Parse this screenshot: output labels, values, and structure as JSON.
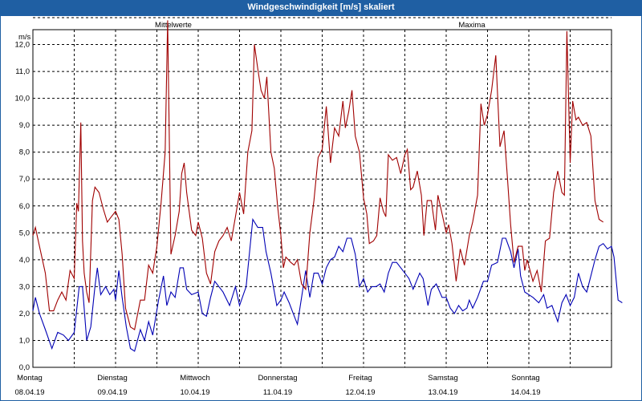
{
  "window": {
    "title": "Windgeschwindigkeit [m/s] skaliert"
  },
  "chart_data": {
    "type": "line",
    "title": "Windgeschwindigkeit [m/s] skaliert",
    "ylabel": "m/s",
    "ylim": [
      0,
      13
    ],
    "grid": true,
    "legend": "top",
    "y_ticks": [
      "0,0",
      "1,0",
      "2,0",
      "3,0",
      "4,0",
      "5,0",
      "6,0",
      "7,0",
      "8,0",
      "9,0",
      "10,0",
      "11,0",
      "12,0"
    ],
    "x_ticks": [
      {
        "day": "Montag",
        "date": "08.04.19"
      },
      {
        "day": "Dienstag",
        "date": "09.04.19"
      },
      {
        "day": "Mittwoch",
        "date": "10.04.19"
      },
      {
        "day": "Donnerstag",
        "date": "11.04.19"
      },
      {
        "day": "Freitag",
        "date": "12.04.19"
      },
      {
        "day": "Samstag",
        "date": "13.04.19"
      },
      {
        "day": "Sonntag",
        "date": "14.04.19"
      }
    ],
    "x_unit": "days since 08.04.19 00:00",
    "series": [
      {
        "name": "Mittelwerte",
        "color": "#0000b4",
        "points": [
          [
            0.0,
            2.1
          ],
          [
            0.03,
            2.6
          ],
          [
            0.08,
            2.0
          ],
          [
            0.15,
            1.4
          ],
          [
            0.23,
            0.7
          ],
          [
            0.3,
            1.3
          ],
          [
            0.37,
            1.2
          ],
          [
            0.43,
            1.0
          ],
          [
            0.5,
            1.3
          ],
          [
            0.56,
            3.0
          ],
          [
            0.6,
            3.0
          ],
          [
            0.65,
            1.0
          ],
          [
            0.7,
            1.5
          ],
          [
            0.75,
            3.0
          ],
          [
            0.78,
            3.7
          ],
          [
            0.82,
            2.7
          ],
          [
            0.88,
            3.0
          ],
          [
            0.93,
            2.7
          ],
          [
            0.98,
            2.9
          ],
          [
            1.0,
            2.5
          ],
          [
            1.04,
            3.6
          ],
          [
            1.08,
            2.6
          ],
          [
            1.13,
            1.5
          ],
          [
            1.18,
            0.7
          ],
          [
            1.23,
            0.6
          ],
          [
            1.3,
            1.4
          ],
          [
            1.35,
            1.0
          ],
          [
            1.4,
            1.7
          ],
          [
            1.45,
            1.2
          ],
          [
            1.52,
            2.5
          ],
          [
            1.58,
            3.4
          ],
          [
            1.62,
            2.3
          ],
          [
            1.67,
            2.8
          ],
          [
            1.72,
            2.6
          ],
          [
            1.78,
            3.7
          ],
          [
            1.82,
            3.7
          ],
          [
            1.86,
            2.9
          ],
          [
            1.92,
            2.7
          ],
          [
            2.0,
            2.8
          ],
          [
            2.05,
            2.0
          ],
          [
            2.1,
            1.9
          ],
          [
            2.15,
            2.6
          ],
          [
            2.2,
            3.2
          ],
          [
            2.25,
            3.0
          ],
          [
            2.3,
            2.8
          ],
          [
            2.38,
            2.3
          ],
          [
            2.45,
            3.0
          ],
          [
            2.5,
            2.3
          ],
          [
            2.58,
            3.0
          ],
          [
            2.66,
            5.5
          ],
          [
            2.72,
            5.2
          ],
          [
            2.78,
            5.2
          ],
          [
            2.82,
            4.3
          ],
          [
            2.88,
            3.5
          ],
          [
            2.95,
            2.3
          ],
          [
            3.0,
            2.5
          ],
          [
            3.04,
            2.8
          ],
          [
            3.1,
            2.4
          ],
          [
            3.15,
            2.0
          ],
          [
            3.2,
            1.6
          ],
          [
            3.25,
            2.6
          ],
          [
            3.3,
            3.6
          ],
          [
            3.35,
            2.6
          ],
          [
            3.4,
            3.5
          ],
          [
            3.45,
            3.5
          ],
          [
            3.5,
            3.1
          ],
          [
            3.55,
            3.7
          ],
          [
            3.6,
            4.0
          ],
          [
            3.65,
            4.1
          ],
          [
            3.7,
            4.5
          ],
          [
            3.75,
            4.3
          ],
          [
            3.8,
            4.8
          ],
          [
            3.85,
            4.8
          ],
          [
            3.9,
            4.2
          ],
          [
            3.95,
            3.0
          ],
          [
            4.0,
            3.3
          ],
          [
            4.05,
            2.8
          ],
          [
            4.1,
            3.0
          ],
          [
            4.15,
            3.0
          ],
          [
            4.2,
            3.1
          ],
          [
            4.25,
            2.8
          ],
          [
            4.3,
            3.5
          ],
          [
            4.35,
            3.9
          ],
          [
            4.4,
            3.9
          ],
          [
            4.5,
            3.5
          ],
          [
            4.55,
            3.3
          ],
          [
            4.6,
            2.9
          ],
          [
            4.68,
            3.5
          ],
          [
            4.72,
            3.3
          ],
          [
            4.78,
            2.3
          ],
          [
            4.82,
            2.9
          ],
          [
            4.88,
            3.1
          ],
          [
            4.95,
            2.6
          ],
          [
            5.0,
            2.6
          ],
          [
            5.05,
            2.2
          ],
          [
            5.1,
            2.0
          ],
          [
            5.15,
            2.3
          ],
          [
            5.2,
            2.1
          ],
          [
            5.25,
            2.2
          ],
          [
            5.28,
            2.5
          ],
          [
            5.32,
            2.2
          ],
          [
            5.38,
            2.6
          ],
          [
            5.45,
            3.2
          ],
          [
            5.5,
            3.2
          ],
          [
            5.55,
            3.8
          ],
          [
            5.62,
            3.9
          ],
          [
            5.68,
            4.8
          ],
          [
            5.72,
            4.8
          ],
          [
            5.78,
            4.3
          ],
          [
            5.82,
            3.7
          ],
          [
            5.87,
            4.4
          ],
          [
            5.9,
            3.4
          ],
          [
            5.95,
            2.8
          ],
          [
            6.0,
            2.7
          ],
          [
            6.05,
            2.6
          ],
          [
            6.12,
            2.4
          ],
          [
            6.18,
            2.7
          ],
          [
            6.22,
            2.2
          ],
          [
            6.28,
            2.3
          ],
          [
            6.35,
            1.7
          ],
          [
            6.4,
            2.4
          ],
          [
            6.45,
            2.7
          ],
          [
            6.5,
            2.3
          ],
          [
            6.55,
            2.6
          ],
          [
            6.6,
            3.5
          ],
          [
            6.65,
            3.0
          ],
          [
            6.7,
            2.8
          ],
          [
            6.75,
            3.4
          ],
          [
            6.8,
            4.0
          ],
          [
            6.85,
            4.5
          ],
          [
            6.9,
            4.6
          ],
          [
            6.95,
            4.4
          ],
          [
            7.0,
            4.5
          ],
          [
            7.03,
            4.1
          ],
          [
            7.08,
            2.5
          ],
          [
            7.13,
            2.4
          ]
        ]
      },
      {
        "name": "Maxima",
        "color": "#a00000",
        "points": [
          [
            0.0,
            4.9
          ],
          [
            0.03,
            5.2
          ],
          [
            0.08,
            4.5
          ],
          [
            0.15,
            3.5
          ],
          [
            0.2,
            2.1
          ],
          [
            0.25,
            2.1
          ],
          [
            0.3,
            2.5
          ],
          [
            0.35,
            2.8
          ],
          [
            0.4,
            2.5
          ],
          [
            0.45,
            3.6
          ],
          [
            0.5,
            3.3
          ],
          [
            0.53,
            6.1
          ],
          [
            0.55,
            5.8
          ],
          [
            0.58,
            9.1
          ],
          [
            0.6,
            4.7
          ],
          [
            0.62,
            3.5
          ],
          [
            0.65,
            2.8
          ],
          [
            0.68,
            2.4
          ],
          [
            0.72,
            6.2
          ],
          [
            0.75,
            6.7
          ],
          [
            0.8,
            6.5
          ],
          [
            0.85,
            5.9
          ],
          [
            0.9,
            5.4
          ],
          [
            0.95,
            5.6
          ],
          [
            1.0,
            5.8
          ],
          [
            1.04,
            5.5
          ],
          [
            1.08,
            4.2
          ],
          [
            1.12,
            2.2
          ],
          [
            1.18,
            1.5
          ],
          [
            1.23,
            1.4
          ],
          [
            1.3,
            2.5
          ],
          [
            1.35,
            2.5
          ],
          [
            1.4,
            3.8
          ],
          [
            1.45,
            3.5
          ],
          [
            1.5,
            4.5
          ],
          [
            1.55,
            6.1
          ],
          [
            1.6,
            8.0
          ],
          [
            1.63,
            12.9
          ],
          [
            1.67,
            4.2
          ],
          [
            1.72,
            4.9
          ],
          [
            1.77,
            5.8
          ],
          [
            1.8,
            7.2
          ],
          [
            1.83,
            7.6
          ],
          [
            1.86,
            6.5
          ],
          [
            1.92,
            5.1
          ],
          [
            1.97,
            4.9
          ],
          [
            2.0,
            5.4
          ],
          [
            2.05,
            4.8
          ],
          [
            2.1,
            3.5
          ],
          [
            2.15,
            3.1
          ],
          [
            2.2,
            4.3
          ],
          [
            2.25,
            4.7
          ],
          [
            2.3,
            4.9
          ],
          [
            2.35,
            5.2
          ],
          [
            2.4,
            4.7
          ],
          [
            2.45,
            5.6
          ],
          [
            2.5,
            6.5
          ],
          [
            2.55,
            5.7
          ],
          [
            2.6,
            8.0
          ],
          [
            2.65,
            8.8
          ],
          [
            2.68,
            12.0
          ],
          [
            2.72,
            11.1
          ],
          [
            2.76,
            10.3
          ],
          [
            2.8,
            10.0
          ],
          [
            2.83,
            10.8
          ],
          [
            2.88,
            8.0
          ],
          [
            2.92,
            7.4
          ],
          [
            2.96,
            6.0
          ],
          [
            3.0,
            4.9
          ],
          [
            3.03,
            3.7
          ],
          [
            3.06,
            4.1
          ],
          [
            3.12,
            3.9
          ],
          [
            3.16,
            3.8
          ],
          [
            3.2,
            4.0
          ],
          [
            3.25,
            3.1
          ],
          [
            3.3,
            2.9
          ],
          [
            3.35,
            5.0
          ],
          [
            3.4,
            6.2
          ],
          [
            3.45,
            7.8
          ],
          [
            3.5,
            8.1
          ],
          [
            3.55,
            9.7
          ],
          [
            3.6,
            7.6
          ],
          [
            3.65,
            8.9
          ],
          [
            3.7,
            8.6
          ],
          [
            3.75,
            9.9
          ],
          [
            3.78,
            8.9
          ],
          [
            3.82,
            9.5
          ],
          [
            3.86,
            10.3
          ],
          [
            3.9,
            8.6
          ],
          [
            3.95,
            8.0
          ],
          [
            4.0,
            6.3
          ],
          [
            4.04,
            5.7
          ],
          [
            4.07,
            4.6
          ],
          [
            4.12,
            4.7
          ],
          [
            4.16,
            4.9
          ],
          [
            4.2,
            6.3
          ],
          [
            4.24,
            5.8
          ],
          [
            4.27,
            5.6
          ],
          [
            4.3,
            7.9
          ],
          [
            4.35,
            7.7
          ],
          [
            4.4,
            7.8
          ],
          [
            4.45,
            7.2
          ],
          [
            4.5,
            7.9
          ],
          [
            4.53,
            8.1
          ],
          [
            4.57,
            6.6
          ],
          [
            4.6,
            6.7
          ],
          [
            4.65,
            7.3
          ],
          [
            4.7,
            6.4
          ],
          [
            4.73,
            4.9
          ],
          [
            4.77,
            6.2
          ],
          [
            4.82,
            6.2
          ],
          [
            4.87,
            5.1
          ],
          [
            4.9,
            6.4
          ],
          [
            4.95,
            5.7
          ],
          [
            5.0,
            5.0
          ],
          [
            5.03,
            5.3
          ],
          [
            5.07,
            4.6
          ],
          [
            5.12,
            3.2
          ],
          [
            5.17,
            4.4
          ],
          [
            5.22,
            3.8
          ],
          [
            5.28,
            4.9
          ],
          [
            5.32,
            5.4
          ],
          [
            5.38,
            6.4
          ],
          [
            5.42,
            9.8
          ],
          [
            5.46,
            9.0
          ],
          [
            5.5,
            9.4
          ],
          [
            5.55,
            10.3
          ],
          [
            5.6,
            11.6
          ],
          [
            5.65,
            8.2
          ],
          [
            5.7,
            8.8
          ],
          [
            5.74,
            7.1
          ],
          [
            5.78,
            5.3
          ],
          [
            5.82,
            3.9
          ],
          [
            5.87,
            4.5
          ],
          [
            5.92,
            4.5
          ],
          [
            5.95,
            3.6
          ],
          [
            5.98,
            4.0
          ],
          [
            6.05,
            3.2
          ],
          [
            6.1,
            3.6
          ],
          [
            6.15,
            2.8
          ],
          [
            6.2,
            4.7
          ],
          [
            6.25,
            4.8
          ],
          [
            6.3,
            6.5
          ],
          [
            6.35,
            7.3
          ],
          [
            6.4,
            6.5
          ],
          [
            6.43,
            6.4
          ],
          [
            6.46,
            12.5
          ],
          [
            6.5,
            7.6
          ],
          [
            6.53,
            9.9
          ],
          [
            6.57,
            9.2
          ],
          [
            6.6,
            9.3
          ],
          [
            6.65,
            9.0
          ],
          [
            6.7,
            9.1
          ],
          [
            6.75,
            8.6
          ],
          [
            6.8,
            6.2
          ],
          [
            6.85,
            5.5
          ],
          [
            6.9,
            5.4
          ]
        ]
      }
    ]
  }
}
